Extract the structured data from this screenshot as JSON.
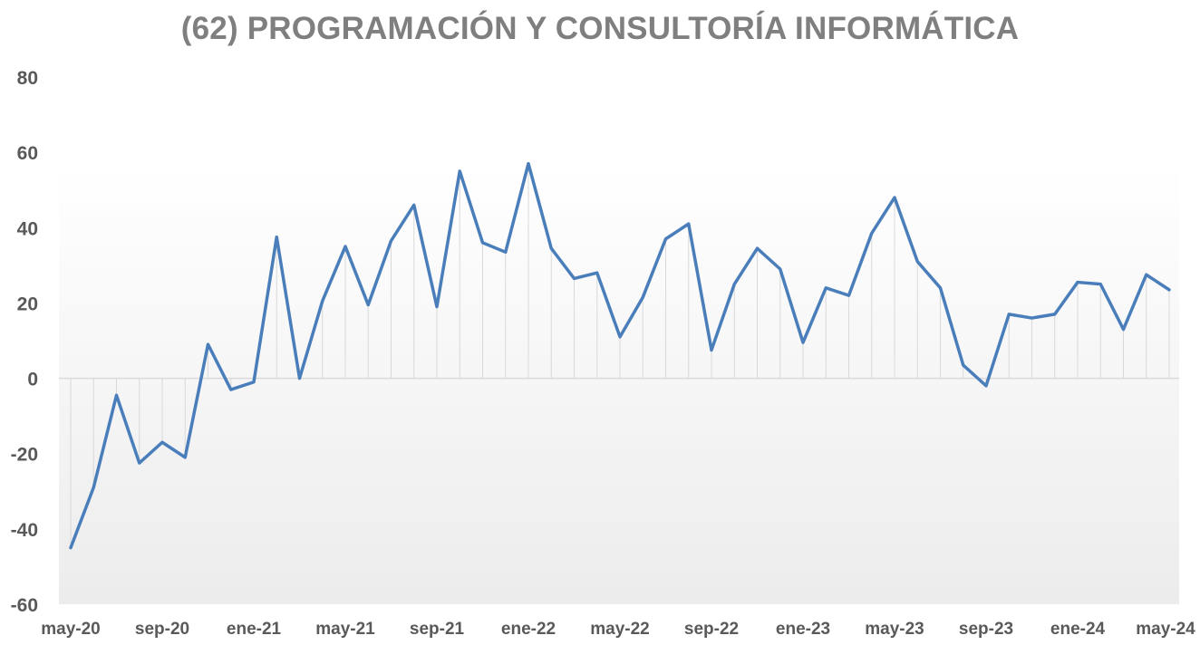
{
  "chart_data": {
    "type": "line",
    "title": "(62) PROGRAMACIÓN Y CONSULTORÍA INFORMÁTICA",
    "xlabel": "",
    "ylabel": "",
    "ylim": [
      -60,
      80
    ],
    "yticks": [
      "80",
      "60",
      "40",
      "20",
      "0",
      "-20",
      "-40",
      "-60"
    ],
    "ytick_values": [
      80,
      60,
      40,
      20,
      0,
      -20,
      -40,
      -60
    ],
    "x_tick_labels": [
      "may-20",
      "sep-20",
      "ene-21",
      "may-21",
      "sep-21",
      "ene-22",
      "may-22",
      "sep-22",
      "ene-23",
      "may-23",
      "sep-23",
      "ene-24",
      "may-24"
    ],
    "x": [
      "may-20",
      "jun-20",
      "jul-20",
      "ago-20",
      "sep-20",
      "oct-20",
      "nov-20",
      "dic-20",
      "ene-21",
      "feb-21",
      "mar-21",
      "abr-21",
      "may-21",
      "jun-21",
      "jul-21",
      "ago-21",
      "sep-21",
      "oct-21",
      "nov-21",
      "dic-21",
      "ene-22",
      "feb-22",
      "mar-22",
      "abr-22",
      "may-22",
      "jun-22",
      "jul-22",
      "ago-22",
      "sep-22",
      "oct-22",
      "nov-22",
      "dic-22",
      "ene-23",
      "feb-23",
      "mar-23",
      "abr-23",
      "may-23",
      "jun-23",
      "jul-23",
      "ago-23",
      "sep-23",
      "oct-23",
      "nov-23",
      "dic-23",
      "ene-24",
      "feb-24",
      "mar-24",
      "abr-24",
      "may-24"
    ],
    "series": [
      {
        "values": [
          -45,
          -29,
          -4.5,
          -22.5,
          -17,
          -21,
          9,
          -3,
          -1,
          37.5,
          0,
          20.5,
          35,
          19.5,
          36.5,
          46,
          19,
          55,
          36,
          33.5,
          57,
          34.5,
          26.5,
          28,
          11,
          21.5,
          37,
          41,
          7.5,
          25,
          34.5,
          29,
          9.5,
          24,
          22,
          38.5,
          48,
          31,
          24,
          3.5,
          -2,
          17,
          16,
          17,
          25.5,
          25,
          13,
          27.5,
          23.5
        ]
      }
    ],
    "colors": {
      "line": "#4a7ebb",
      "drop_lines": "#d9d9d9",
      "zero_line": "#d9d9d9",
      "title": "#7f7f7f",
      "tick_labels": "#595959"
    },
    "grid": false,
    "legend": "none"
  }
}
